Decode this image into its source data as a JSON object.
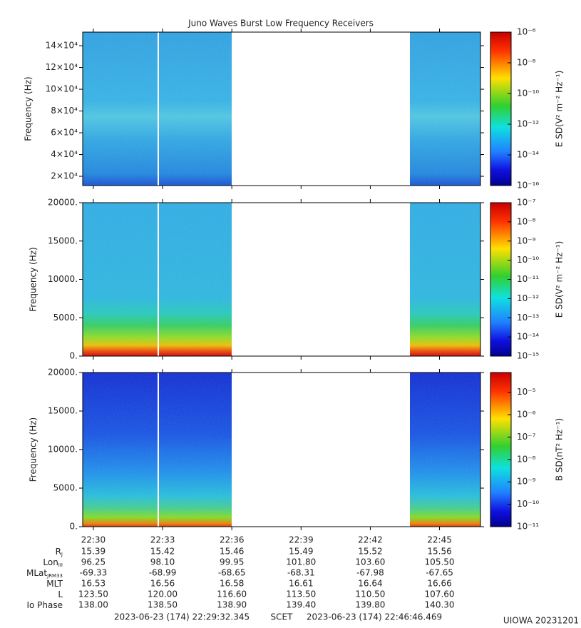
{
  "title": "Juno Waves Burst Low Frequency Receivers",
  "chart_data": [
    {
      "type": "spectrogram",
      "ylabel": "Frequency (Hz)",
      "ylim": [
        11500,
        152500
      ],
      "yticks": [
        {
          "value": 20000,
          "label": "2×10⁴"
        },
        {
          "value": 40000,
          "label": "4×10⁴"
        },
        {
          "value": 60000,
          "label": "6×10⁴"
        },
        {
          "value": 80000,
          "label": "8×10⁴"
        },
        {
          "value": 100000,
          "label": "10×10⁴"
        },
        {
          "value": 120000,
          "label": "12×10⁴"
        },
        {
          "value": 140000,
          "label": "14×10⁴"
        }
      ],
      "colorbar": {
        "label": "E SD(V² m⁻² Hz⁻¹)",
        "log": true,
        "lim": [
          1e-16,
          1e-06
        ],
        "ticks": [
          {
            "value": 1e-16,
            "label": "10⁻¹⁶"
          },
          {
            "value": 1e-14,
            "label": "10⁻¹⁴"
          },
          {
            "value": 1e-12,
            "label": "10⁻¹²"
          },
          {
            "value": 1e-10,
            "label": "10⁻¹⁰"
          },
          {
            "value": 1e-08,
            "label": "10⁻⁸"
          },
          {
            "value": 1e-06,
            "label": "10⁻⁶"
          }
        ]
      }
    },
    {
      "type": "spectrogram",
      "ylabel": "Frequency (Hz)",
      "ylim": [
        0,
        20000
      ],
      "yticks": [
        {
          "value": 0,
          "label": "0."
        },
        {
          "value": 5000,
          "label": "5000."
        },
        {
          "value": 10000,
          "label": "10000."
        },
        {
          "value": 15000,
          "label": "15000."
        },
        {
          "value": 20000,
          "label": "20000."
        }
      ],
      "colorbar": {
        "label": "E SD(V² m⁻² Hz⁻¹)",
        "log": true,
        "lim": [
          1e-15,
          1e-07
        ],
        "ticks": [
          {
            "value": 1e-15,
            "label": "10⁻¹⁵"
          },
          {
            "value": 1e-14,
            "label": "10⁻¹⁴"
          },
          {
            "value": 1e-13,
            "label": "10⁻¹³"
          },
          {
            "value": 1e-12,
            "label": "10⁻¹²"
          },
          {
            "value": 1e-11,
            "label": "10⁻¹¹"
          },
          {
            "value": 1e-10,
            "label": "10⁻¹⁰"
          },
          {
            "value": 1e-09,
            "label": "10⁻⁹"
          },
          {
            "value": 1e-08,
            "label": "10⁻⁸"
          },
          {
            "value": 1e-07,
            "label": "10⁻⁷"
          }
        ]
      }
    },
    {
      "type": "spectrogram",
      "ylabel": "Frequency (Hz)",
      "ylim": [
        0,
        20000
      ],
      "yticks": [
        {
          "value": 0,
          "label": "0."
        },
        {
          "value": 5000,
          "label": "5000."
        },
        {
          "value": 10000,
          "label": "10000."
        },
        {
          "value": 15000,
          "label": "15000."
        },
        {
          "value": 20000,
          "label": "20000."
        }
      ],
      "colorbar": {
        "label": "B SD(nT² Hz⁻¹)",
        "log": true,
        "lim": [
          1e-11,
          7.6e-05
        ],
        "ticks": [
          {
            "value": 1e-11,
            "label": "10⁻¹¹"
          },
          {
            "value": 1e-10,
            "label": "10⁻¹⁰"
          },
          {
            "value": 1e-09,
            "label": "10⁻⁹"
          },
          {
            "value": 1e-08,
            "label": "10⁻⁸"
          },
          {
            "value": 1e-07,
            "label": "10⁻⁷"
          },
          {
            "value": 1e-06,
            "label": "10⁻⁶"
          },
          {
            "value": 1e-05,
            "label": "10⁻⁵"
          }
        ]
      }
    }
  ],
  "time_axis": {
    "xlim": [
      29.5391,
      46.7745
    ],
    "xticks": [
      {
        "value": 30,
        "label": "22:30"
      },
      {
        "value": 33,
        "label": "22:33"
      },
      {
        "value": 36,
        "label": "22:36"
      },
      {
        "value": 39,
        "label": "22:39"
      },
      {
        "value": 42,
        "label": "22:42"
      },
      {
        "value": 45,
        "label": "22:45"
      }
    ]
  },
  "ephemeris": [
    {
      "label": "R",
      "sub": "J",
      "values": [
        "15.39",
        "15.42",
        "15.46",
        "15.49",
        "15.52",
        "15.56"
      ]
    },
    {
      "label": "Lon",
      "sub": "III",
      "values": [
        "96.25",
        "98.10",
        "99.95",
        "101.80",
        "103.60",
        "105.50"
      ]
    },
    {
      "label": "MLat",
      "sub": "JRM33",
      "values": [
        "-69.33",
        "-68.99",
        "-68.65",
        "-68.31",
        "-67.98",
        "-67.65"
      ]
    },
    {
      "label": "MLT",
      "values": [
        "16.53",
        "16.56",
        "16.58",
        "16.61",
        "16.64",
        "16.66"
      ]
    },
    {
      "label": "L",
      "values": [
        "123.50",
        "120.00",
        "116.60",
        "113.50",
        "110.50",
        "107.60"
      ]
    },
    {
      "label": "Io Phase",
      "values": [
        "138.00",
        "138.50",
        "138.90",
        "139.40",
        "139.80",
        "140.30"
      ]
    }
  ],
  "footer": {
    "start": "2023-06-23 (174) 22:29:32.345",
    "frame": "SCET",
    "end": "2023-06-23 (174) 22:46:46.469",
    "credit": "UIOWA 20231201"
  }
}
